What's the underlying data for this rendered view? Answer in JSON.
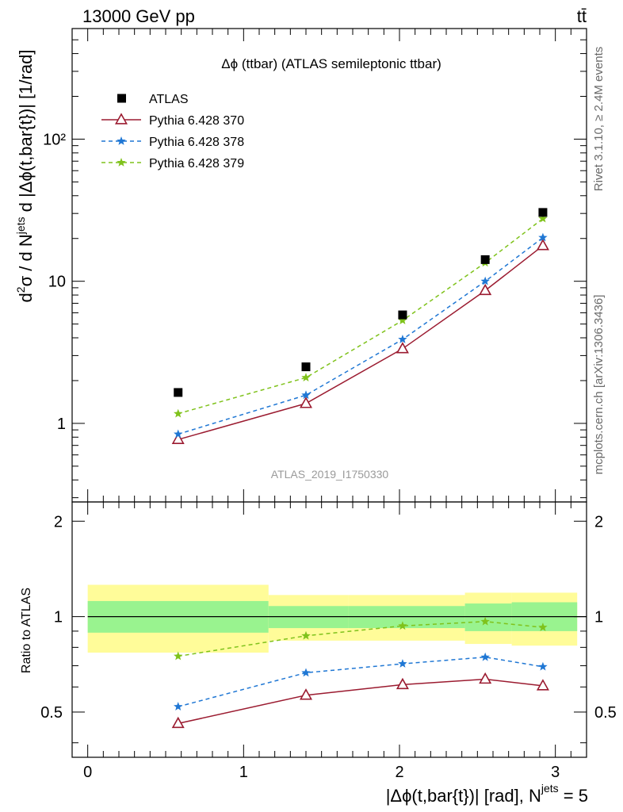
{
  "header": {
    "energy_label": "13000 GeV pp",
    "process_label": "tt̄"
  },
  "side_labels": {
    "rivet": "Rivet 3.1.10, ≥ 2.4M events",
    "mcplots": "mcplots.cern.ch [arXiv:1306.3436]"
  },
  "chart_data": {
    "type": "line",
    "title": "Δϕ (ttbar) (ATLAS semileptonic ttbar)",
    "watermark": "ATLAS_2019_I1750330",
    "xlabel": "|Δϕ(t,bar{t})| [rad], N^jets = 5",
    "xlabel_main": "|Δϕ(t,bar{t})| [rad], N",
    "xlabel_sup": "jets",
    "xlabel_tail": " = 5",
    "ylabel": "d²σ / d N^jets d |Δϕ(t,bar{t})| [1/rad]",
    "ylabel_parts": {
      "d": "d",
      "d_sup": "2",
      "mid": "σ / d N",
      "jets_sup": "jets",
      "tail": " d |Δϕ(t,bar{t})| [1/rad]"
    },
    "ratio_ylabel": "Ratio to ATLAS",
    "xlim": [
      -0.1,
      3.2
    ],
    "ylim": [
      0.28,
      600
    ],
    "y_log": true,
    "ratio_ylim": [
      0.36,
      2.3
    ],
    "x_ticks": [
      "0",
      "1",
      "2",
      "3"
    ],
    "y_ticks": {
      "1": "1",
      "10": "10",
      "100": "10²"
    },
    "ratio_ticks": [
      "0.5",
      "1",
      "2"
    ],
    "x": [
      0.58,
      1.4,
      2.02,
      2.55,
      2.92
    ],
    "series": [
      {
        "name": "ATLAS",
        "style": "data",
        "color": "#000000",
        "values": [
          1.65,
          2.5,
          5.8,
          14.2,
          30.5
        ]
      },
      {
        "name": "Pythia 6.428 370",
        "style": "solid-triangle",
        "color": "#9b1b30",
        "values": [
          0.77,
          1.38,
          3.35,
          8.6,
          17.8
        ]
      },
      {
        "name": "Pythia 6.428 378",
        "style": "dashed-star",
        "color": "#1f77d4",
        "values": [
          0.84,
          1.58,
          3.9,
          10.0,
          20.3
        ]
      },
      {
        "name": "Pythia 6.428 379",
        "style": "dashed-star",
        "color": "#7fc21b",
        "values": [
          1.17,
          2.1,
          5.3,
          13.5,
          27.6
        ]
      }
    ],
    "ratio": {
      "series": [
        {
          "name": "Pythia 6.428 370",
          "values": [
            0.46,
            0.565,
            0.61,
            0.635,
            0.605
          ]
        },
        {
          "name": "Pythia 6.428 378",
          "values": [
            0.52,
            0.665,
            0.71,
            0.745,
            0.695
          ]
        },
        {
          "name": "Pythia 6.428 379",
          "values": [
            0.75,
            0.87,
            0.935,
            0.965,
            0.925
          ]
        }
      ],
      "bands": [
        {
          "x0": 0.0,
          "x1": 1.16,
          "stat": [
            0.89,
            1.12
          ],
          "total": [
            0.77,
            1.26
          ]
        },
        {
          "x0": 1.16,
          "x1": 1.67,
          "stat": [
            0.92,
            1.08
          ],
          "total": [
            0.84,
            1.17
          ]
        },
        {
          "x0": 1.67,
          "x1": 2.42,
          "stat": [
            0.92,
            1.08
          ],
          "total": [
            0.84,
            1.17
          ]
        },
        {
          "x0": 2.42,
          "x1": 2.72,
          "stat": [
            0.9,
            1.1
          ],
          "total": [
            0.82,
            1.19
          ]
        },
        {
          "x0": 2.72,
          "x1": 3.14,
          "stat": [
            0.9,
            1.11
          ],
          "total": [
            0.81,
            1.19
          ]
        }
      ],
      "stat_color": "#99f38f",
      "total_color": "#fffc99"
    }
  }
}
